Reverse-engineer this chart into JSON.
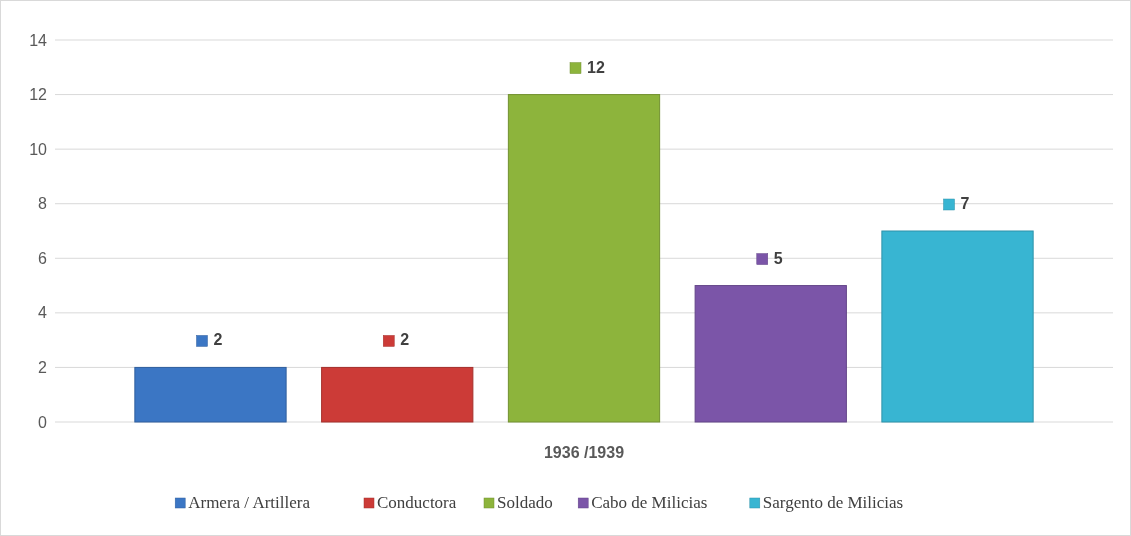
{
  "chart_data": {
    "type": "bar",
    "categories": [
      "1936 /1939"
    ],
    "series": [
      {
        "name": "Armera / Artillera",
        "color": "#3b76c4",
        "values": [
          2
        ]
      },
      {
        "name": "Conductora",
        "color": "#cc3b37",
        "values": [
          2
        ]
      },
      {
        "name": "Soldado",
        "color": "#8db43c",
        "values": [
          12
        ]
      },
      {
        "name": "Cabo de Milicias",
        "color": "#7b55a8",
        "values": [
          5
        ]
      },
      {
        "name": "Sargento de Milicias",
        "color": "#38b5d2",
        "values": [
          7
        ]
      }
    ],
    "ylim": [
      0,
      14
    ],
    "yticks": [
      0,
      2,
      4,
      6,
      8,
      10,
      12,
      14
    ],
    "grid": "y",
    "legend": "bottom",
    "data_labels": true
  }
}
